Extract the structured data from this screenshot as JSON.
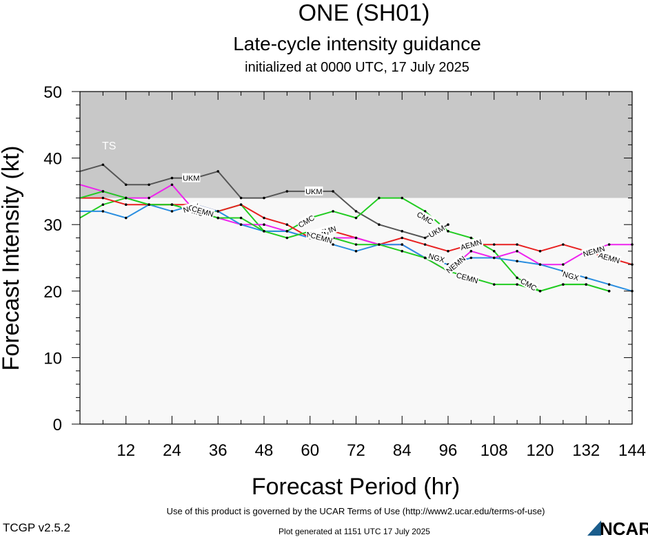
{
  "header": {
    "title": "ONE (SH01)",
    "subtitle": "Late-cycle intensity guidance",
    "initialized": "initialized at 0000 UTC, 17 July 2025"
  },
  "footer": {
    "version": "TCGP v2.5.2",
    "terms": "Use of this product is governed by the UCAR Terms of Use (http://www2.ucar.edu/terms-of-use)",
    "generated": "Plot generated at 1151 UTC   17 July 2025",
    "logo_text": "NCAR"
  },
  "chart_data": {
    "type": "line",
    "xlabel": "Forecast Period (hr)",
    "ylabel": "Forecast Intensity (kt)",
    "xlim": [
      0,
      144
    ],
    "ylim": [
      0,
      50
    ],
    "x_ticks": [
      12,
      24,
      36,
      48,
      60,
      72,
      84,
      96,
      108,
      120,
      132,
      144
    ],
    "y_ticks": [
      0,
      10,
      20,
      30,
      40,
      50
    ],
    "bands": [
      {
        "label": "TS",
        "y_from": 34,
        "y_to": 50,
        "color": "#c8c8c8"
      },
      {
        "label": "",
        "y_from": 0,
        "y_to": 34,
        "color": "#f8f8f8"
      }
    ],
    "series": [
      {
        "name": "UKM",
        "color": "#555555",
        "x": [
          0,
          6,
          12,
          18,
          24,
          30,
          36,
          42,
          48,
          54,
          60,
          66,
          72,
          78,
          84,
          90,
          96
        ],
        "y": [
          38,
          39,
          36,
          36,
          37,
          37,
          38,
          34,
          34,
          35,
          35,
          35,
          32,
          30,
          29,
          28,
          30
        ],
        "labels": [
          {
            "text": "UKM",
            "x": 29,
            "y": 37
          },
          {
            "text": "UKM",
            "x": 61,
            "y": 35
          },
          {
            "text": "UKM",
            "x": 93,
            "y": 29
          }
        ]
      },
      {
        "name": "CMC",
        "color": "#22cc22",
        "x": [
          0,
          6,
          12,
          18,
          24,
          30,
          36,
          42,
          48,
          54,
          60,
          66,
          72,
          78,
          84,
          90,
          96,
          102,
          108,
          114,
          120,
          126,
          132,
          138
        ],
        "y": [
          31,
          33,
          34,
          33,
          33,
          32,
          32,
          33,
          29,
          29,
          31,
          32,
          31,
          34,
          34,
          32,
          29,
          28,
          26,
          22,
          20,
          21,
          21,
          20
        ],
        "labels": [
          {
            "text": "CMC",
            "x": 30,
            "y": 32
          },
          {
            "text": "CMC",
            "x": 59,
            "y": 30.5
          },
          {
            "text": "CMC",
            "x": 90,
            "y": 31
          },
          {
            "text": "CMC",
            "x": 117,
            "y": 21
          }
        ]
      },
      {
        "name": "AEMN",
        "color": "#e82020",
        "x": [
          0,
          6,
          12,
          18,
          24,
          30,
          36,
          42,
          48,
          54,
          60,
          66,
          72,
          78,
          84,
          90,
          96,
          102,
          108,
          114,
          120,
          126,
          132,
          138,
          144
        ],
        "y": [
          34,
          34,
          33,
          33,
          33,
          33,
          32,
          33,
          31,
          30,
          28,
          29,
          28,
          27,
          28,
          27,
          26,
          27,
          27,
          27,
          26,
          27,
          26,
          25,
          24
        ],
        "labels": [
          {
            "text": "AEMN",
            "x": 64,
            "y": 29
          },
          {
            "text": "AEMN",
            "x": 102,
            "y": 27
          },
          {
            "text": "AEMN",
            "x": 138,
            "y": 25
          }
        ]
      },
      {
        "name": "NEMN",
        "color": "#ee22ee",
        "x": [
          0,
          6,
          12,
          18,
          24,
          30,
          36,
          42,
          48,
          54,
          60,
          66,
          72,
          78,
          84,
          90,
          96,
          102,
          108,
          114,
          120,
          126,
          132,
          138,
          144
        ],
        "y": [
          36,
          35,
          34,
          34,
          36,
          32,
          31,
          30,
          30,
          29,
          28,
          28,
          28,
          27,
          27,
          25,
          23,
          26,
          25,
          26,
          24,
          24,
          26,
          27,
          27
        ],
        "labels": [
          {
            "text": "NEMN",
            "x": 62,
            "y": 28.5
          },
          {
            "text": "NEMN",
            "x": 98,
            "y": 24
          },
          {
            "text": "NEMN",
            "x": 134,
            "y": 26
          }
        ]
      },
      {
        "name": "NGX",
        "color": "#2a8ee0",
        "x": [
          0,
          6,
          12,
          18,
          24,
          30,
          36,
          42,
          48,
          54,
          60,
          66,
          72,
          78,
          84,
          90,
          96,
          102,
          108,
          114,
          120,
          126,
          132,
          138,
          144
        ],
        "y": [
          32,
          32,
          31,
          33,
          32,
          33,
          32,
          30,
          29,
          29,
          28,
          27,
          26,
          27,
          27,
          25,
          24,
          25,
          25,
          24.5,
          24,
          23,
          22,
          21,
          20
        ],
        "labels": [
          {
            "text": "NGX",
            "x": 29,
            "y": 32.5
          },
          {
            "text": "NGX",
            "x": 93,
            "y": 25
          },
          {
            "text": "NGX",
            "x": 128,
            "y": 22.3
          }
        ]
      },
      {
        "name": "CEMN",
        "color": "#22cc22",
        "x": [
          0,
          6,
          12,
          18,
          24,
          30,
          36,
          42,
          48,
          54,
          60,
          66,
          72,
          78,
          84,
          90,
          96,
          102,
          108,
          114,
          120,
          126,
          132,
          138
        ],
        "y": [
          34,
          35,
          34,
          33,
          33,
          32,
          31,
          31,
          29,
          28,
          29,
          28,
          27,
          27,
          26,
          25,
          23,
          22,
          21,
          21,
          20,
          21,
          21,
          20
        ],
        "labels": [
          {
            "text": "CEMN",
            "x": 32,
            "y": 32
          },
          {
            "text": "CEMN",
            "x": 63,
            "y": 28
          },
          {
            "text": "CEMN",
            "x": 101,
            "y": 22
          }
        ]
      }
    ]
  }
}
